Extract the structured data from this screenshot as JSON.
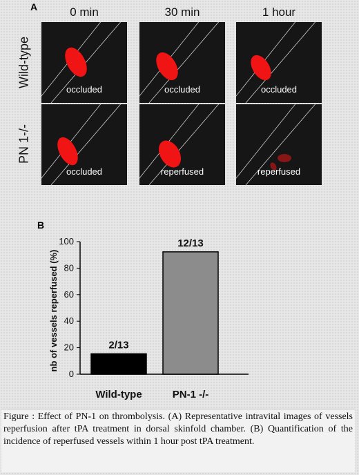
{
  "panel_a": {
    "label": "A",
    "columns": [
      "0 min",
      "30 min",
      "1 hour"
    ],
    "rows": [
      "Wild-type",
      "PN 1-/-"
    ],
    "tiles": [
      [
        "occluded",
        "occluded",
        "occluded"
      ],
      [
        "occluded",
        "reperfused",
        "reperfused"
      ]
    ]
  },
  "panel_b": {
    "label": "B"
  },
  "chart_data": {
    "type": "bar",
    "categories": [
      "Wild-type",
      "PN-1 -/-"
    ],
    "values": [
      15.4,
      92.3
    ],
    "data_labels": [
      "2/13",
      "12/13"
    ],
    "bar_colors": [
      "#000000",
      "#8c8c8c"
    ],
    "ylabel": "nb of vessels reperfused (%)",
    "xlabel": "",
    "ylim": [
      0,
      100
    ],
    "yticks": [
      0,
      20,
      40,
      60,
      80,
      100
    ],
    "grid": false
  },
  "caption": "Figure : Effect of PN-1 on thrombolysis. (A) Representative intravital images of vessels reperfusion after tPA treatment in dorsal skinfold chamber. (B) Quantification of the incidence of reperfused vessels within 1 hour post tPA treatment."
}
